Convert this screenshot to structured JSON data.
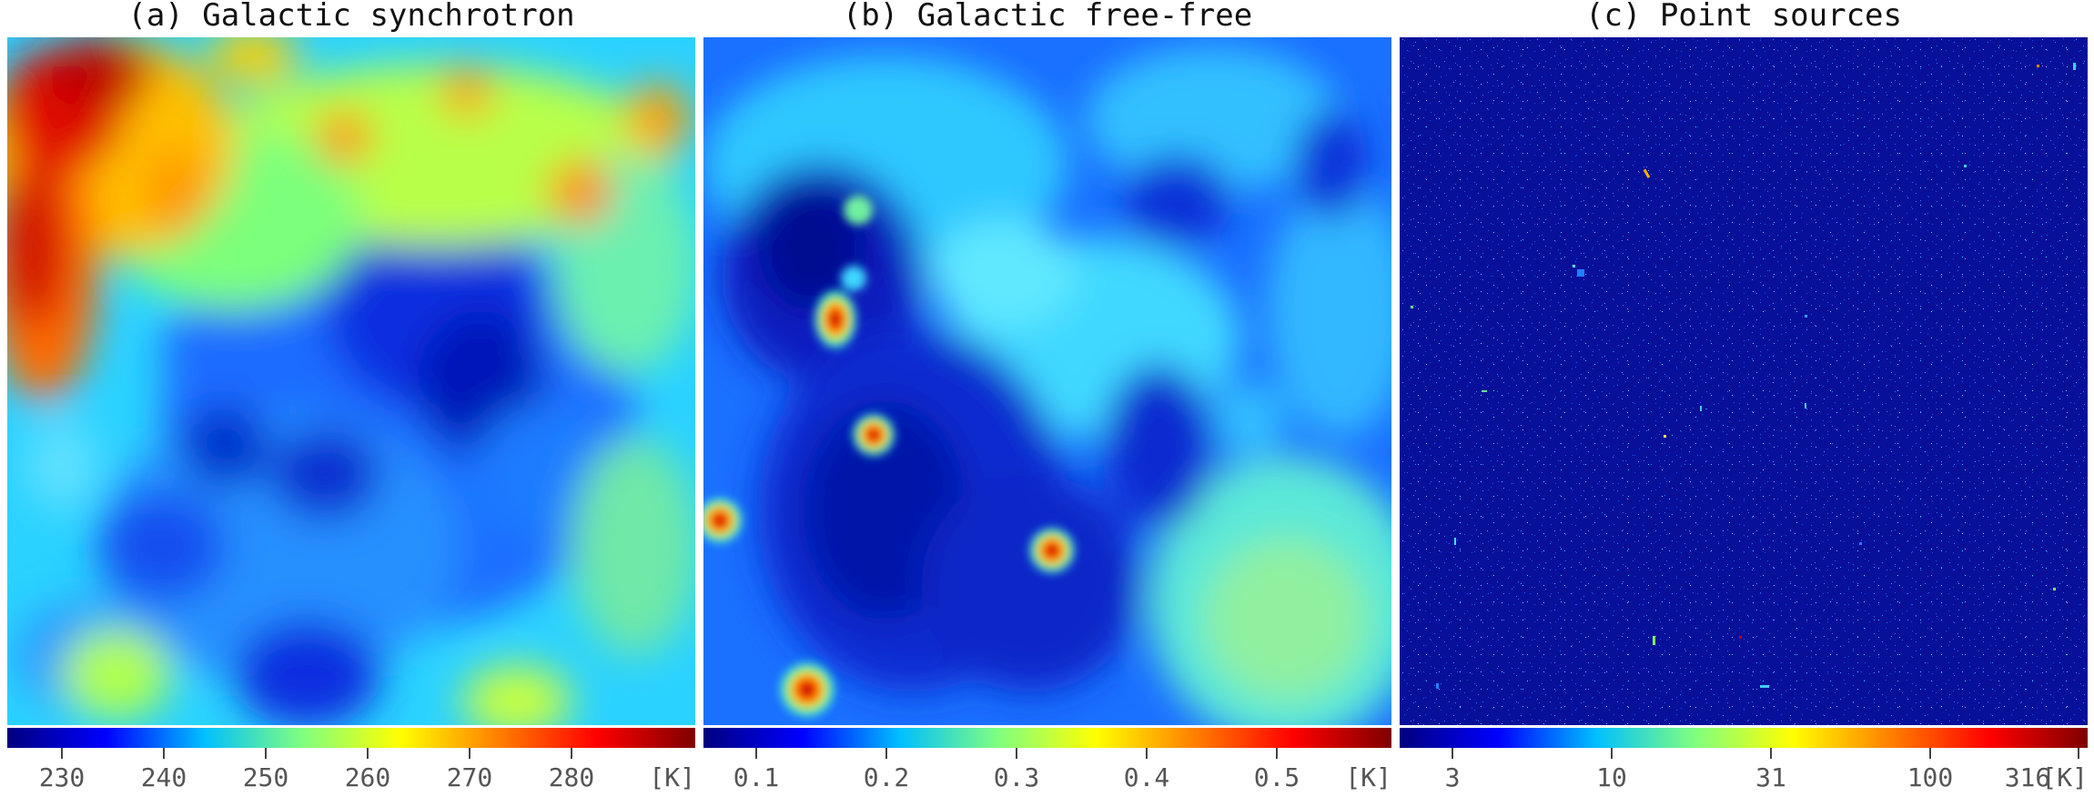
{
  "panels": [
    {
      "title": "(a) Galactic synchrotron",
      "colorbar": {
        "ticks": [
          "230",
          "240",
          "250",
          "260",
          "270",
          "280"
        ],
        "unit": "[K]"
      }
    },
    {
      "title": "(b) Galactic free-free",
      "colorbar": {
        "ticks": [
          "0.1",
          "0.2",
          "0.3",
          "0.4",
          "0.5"
        ],
        "unit": "[K]"
      }
    },
    {
      "title": "(c) Point sources",
      "colorbar": {
        "ticks": [
          "3",
          "10",
          "31",
          "100",
          "316"
        ],
        "unit": "[K]"
      }
    }
  ],
  "colormap": [
    "#00007f",
    "#0000ff",
    "#00bfff",
    "#7fff7f",
    "#ffff00",
    "#ff7f00",
    "#ff0000",
    "#7f0000"
  ]
}
